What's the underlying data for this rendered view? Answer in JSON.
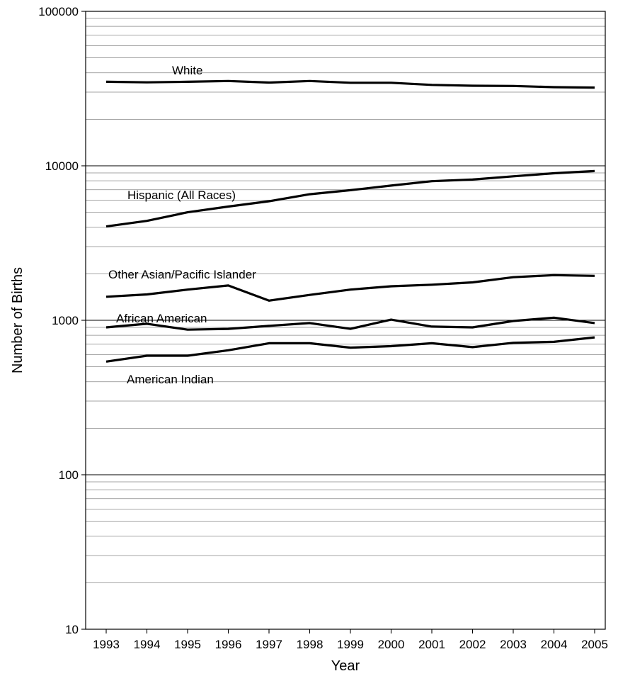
{
  "chart_data": {
    "type": "line",
    "title": "",
    "xlabel": "Year",
    "ylabel": "Number of Births",
    "y_scale": "log",
    "ylim": [
      10,
      100000
    ],
    "y_ticks": [
      10,
      100,
      1000,
      10000,
      100000
    ],
    "y_tick_labels": [
      "10",
      "100",
      "1000",
      "10000",
      "100000"
    ],
    "grid": "horizontal minor and major",
    "legend": "inline labels",
    "line_color": "#000000",
    "x": [
      "1993",
      "1994",
      "1995",
      "1996",
      "1997",
      "1998",
      "1999",
      "2000",
      "2001",
      "2002",
      "2003",
      "2004",
      "2005"
    ],
    "series": [
      {
        "name": "White",
        "values": [
          35000,
          34700,
          35000,
          35400,
          34600,
          35400,
          34500,
          34500,
          33400,
          33000,
          32900,
          32300,
          32100
        ]
      },
      {
        "name": "Hispanic (All Races)",
        "values": [
          4050,
          4400,
          5000,
          5450,
          5900,
          6550,
          6950,
          7450,
          7950,
          8150,
          8550,
          8950,
          9250
        ]
      },
      {
        "name": "Other Asian/Pacific Islander",
        "values": [
          1420,
          1470,
          1580,
          1680,
          1340,
          1460,
          1580,
          1660,
          1700,
          1760,
          1900,
          1960,
          1940
        ]
      },
      {
        "name": "African American",
        "values": [
          900,
          950,
          870,
          880,
          920,
          960,
          880,
          1010,
          910,
          900,
          990,
          1040,
          960
        ]
      },
      {
        "name": "American Indian",
        "values": [
          540,
          590,
          590,
          640,
          710,
          710,
          665,
          680,
          710,
          670,
          715,
          725,
          775
        ]
      }
    ]
  }
}
